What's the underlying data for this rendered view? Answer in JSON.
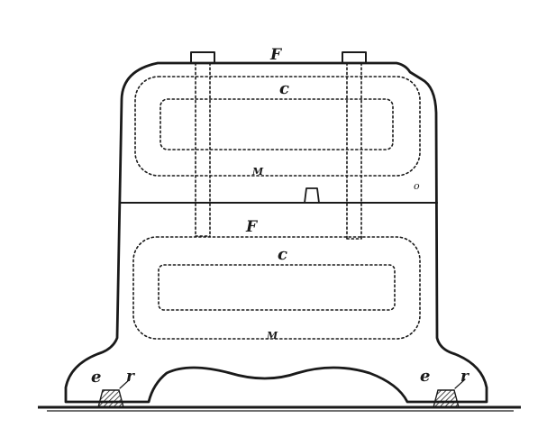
{
  "labels": {
    "frame_top": "F",
    "frame_middle": "F",
    "coil_top": "c",
    "coil_bottom": "c",
    "magnet_top": "M",
    "magnet_bottom": "M",
    "bearing_left_e": "e",
    "bearing_left_r": "r",
    "bearing_right_e": "e",
    "bearing_right_r": "r",
    "side_mark": "o"
  },
  "colors": {
    "ink": "#1a1a1a",
    "paper": "#ffffff"
  }
}
